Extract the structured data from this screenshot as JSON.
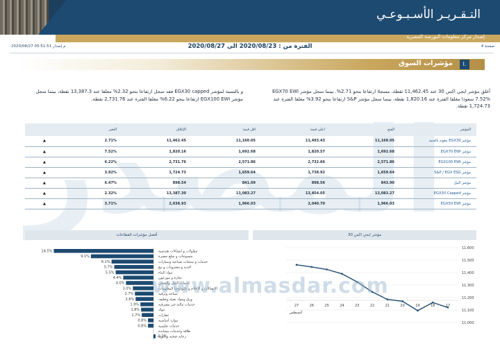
{
  "header": {
    "title": "التـقـريـر الأسـبـوعـي",
    "subtitle": "إصدار مركز معلومات البورصة المصرية",
    "page_label": "صفحة 4",
    "issue_label": "إصدار",
    "issue_value": "2020/08/27 05:51:51 م"
  },
  "period": {
    "text": "الفترة من : 2020/08/23 الى 2020/08/27"
  },
  "section": {
    "number": "ا.",
    "title": "مؤشرات السوق"
  },
  "summary": {
    "right": "أغلق مؤشر ايجي اكس 30 عند 11,462.45 نقطة، مسجلا ارتفاعا بنحو 2.71%. بينما سجل مؤشر EGX70 EWI 7.52% سعودا مغلقا الفترة عند 1,820.16 نقطة، بينما سجل مؤشر S&P ارتفاعا بنحو 3.92% مغلقا الفترة عند 1,724.73 نقطة.",
    "left": "و بالنسبة لمؤشر EGX30 capped فقد سجل ارتفاعا بنحو 2.32% مغلقا عند 13,387.3 نقطة، بينما سجل مؤشر EGX100 EWI ارتفاعا بنحو 6.22% مغلقا الفترة عند 2,731.76 نقطة."
  },
  "watermark": {
    "text": "المصدر",
    "url": "www.almasdar.com"
  },
  "table": {
    "headers": [
      "المؤشر",
      "الفتح",
      "اعلى قيمة",
      "اقل قيمة",
      "الإغلاق",
      "التغير",
      ""
    ],
    "rows": [
      {
        "name": "مؤشر EGX30 مقوم بالجنيه",
        "open": "11,160.05",
        "high": "11,493.43",
        "low": "11,160.05",
        "close": "11,462.45",
        "change": "2.71%",
        "arrow": "▲"
      },
      {
        "name": "مؤشر EGX70 EWI",
        "open": "1,692.68",
        "high": "1,820.57",
        "low": "1,692.68",
        "close": "1,820.16",
        "change": "7.52%",
        "arrow": "▲"
      },
      {
        "name": "مؤشر EGX100 EWI",
        "open": "2,571.86",
        "high": "2,732.66",
        "low": "2,571.86",
        "close": "2,731.76",
        "change": "6.22%",
        "arrow": "▲"
      },
      {
        "name": "مؤشر S&P / EGX ESG",
        "open": "1,659.64",
        "high": "1,738.92",
        "low": "1,659.64",
        "close": "1,724.73",
        "change": "3.92%",
        "arrow": "▲"
      },
      {
        "name": "مؤشر النيل",
        "open": "843.90",
        "high": "898.56",
        "low": "841.09",
        "close": "898.54",
        "change": "6.47%",
        "arrow": "▲"
      },
      {
        "name": "مؤشر EGX30 Capped",
        "open": "13,083.27",
        "high": "13,454.05",
        "low": "13,083.27",
        "close": "13,387.30",
        "change": "2.32%",
        "arrow": "▲"
      },
      {
        "name": "مؤشر EGX50 EWI",
        "open": "1,966.03",
        "high": "2,040.70",
        "low": "1,966.03",
        "close": "2,038.93",
        "change": "3.71%",
        "arrow": "▲"
      }
    ]
  },
  "colors": {
    "navy": "#1d4a70",
    "gold": "#c9a75e",
    "bar": "#1d4a70",
    "line": "#1d4a70"
  },
  "chart_data": [
    {
      "type": "bar",
      "title": "أفضل مؤشرات القطاعات",
      "categories": [
        "مقاولات و انشاءات هندسية",
        "منسوجات و سلع معمرة",
        "خدمات و منتجات صناعية وسيارات",
        "اغذية و مشروبات و تبغ",
        "مواد البناء",
        "تجارة و موزعون",
        "خدمات النقل والشحن",
        "الاتصالات و الاعلام و تكنولوجيا المعلومات",
        "سياحة وترفيه",
        "ورق ومواد تعبئة وتغليف",
        "خدمات مالية غير مصرفية",
        "بنوك",
        "عقارات",
        "موارد أساسية",
        "خدمات تعليمية",
        "طاقة وخدمات مساندة",
        "رعاية صحية و ادوية"
      ],
      "values": [
        14.5,
        9.1,
        6.1,
        5.7,
        5.5,
        4.4,
        4.0,
        3.0,
        2.7,
        2.6,
        1.9,
        1.8,
        1.7,
        0.8,
        0.8,
        0.0,
        -0.3
      ],
      "labels": [
        "14.5%",
        "9.1%",
        "6.1%",
        "5.7%",
        "5.5%",
        "4.4%",
        "4.0%",
        "3.0%",
        "2.7%",
        "2.6%",
        "1.9%",
        "1.8%",
        "1.7%",
        "0.8%",
        "0.8%",
        "",
        "-0.3%"
      ],
      "orientation": "horizontal"
    },
    {
      "type": "line",
      "title": "مؤشر ايجي اكس 30",
      "x": [
        "27",
        "26",
        "25",
        "24",
        "23",
        "22",
        "21",
        "20",
        "19",
        "18",
        "17"
      ],
      "values": [
        11462,
        11445,
        11425,
        11390,
        11325,
        11245,
        11185,
        11170,
        11095,
        11160,
        11120
      ],
      "ylim": [
        11000,
        11600
      ],
      "yticks": [
        "11,600",
        "11,500",
        "11,400",
        "11,300",
        "11,200",
        "11,100",
        "11,000"
      ],
      "xlabel": "أغسطس"
    }
  ]
}
